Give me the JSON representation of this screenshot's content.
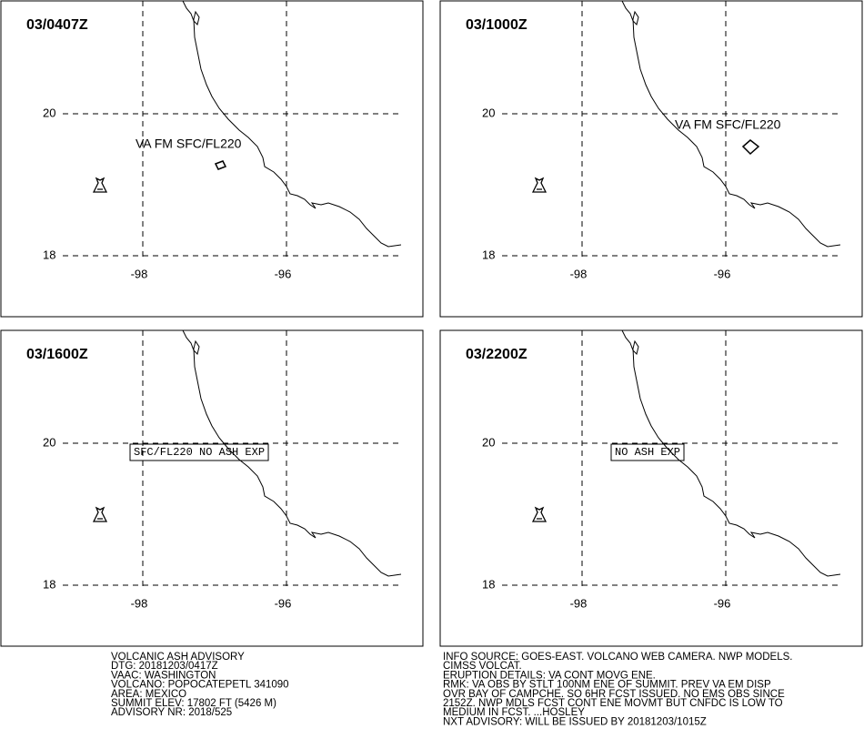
{
  "panels": [
    {
      "time": "03/0407Z",
      "annotation": "VA FM SFC/FL220"
    },
    {
      "time": "03/1000Z",
      "annotation": "VA FM SFC/FL220"
    },
    {
      "time": "03/1600Z",
      "annotation": "SFC/FL220 NO ASH EXP"
    },
    {
      "time": "03/2200Z",
      "annotation": "NO ASH EXP"
    }
  ],
  "lat_labels": [
    "20",
    "18"
  ],
  "lon_labels": [
    "-98",
    "-96"
  ],
  "advisory_left": [
    "VOLCANIC ASH ADVISORY",
    "DTG: 20181203/0417Z",
    "VAAC: WASHINGTON",
    "VOLCANO: POPOCATEPETL 341090",
    "AREA: MEXICO",
    "SUMMIT ELEV: 17802 FT (5426 M)",
    "ADVISORY NR: 2018/525"
  ],
  "advisory_right": [
    "INFO SOURCE: GOES-EAST. VOLCANO WEB CAMERA. NWP MODELS.",
    "CIMSS VOLCAT.",
    "ERUPTION DETAILS: VA CONT MOVG ENE.",
    "RMK: VA OBS BY STLT 100NM ENE OF SUMMIT. PREV VA EM DISP",
    "OVR BAY OF CAMPCHE. SO 6HR FCST ISSUED. NO EMS OBS SINCE",
    "2152Z. NWP MDLS FCST CONT ENE MOVMT BUT CNFDC IS LOW TO",
    "MEDIUM IN FCST. ...HOSLEY",
    "NXT ADVISORY: WILL BE ISSUED BY 20181203/1015Z"
  ]
}
